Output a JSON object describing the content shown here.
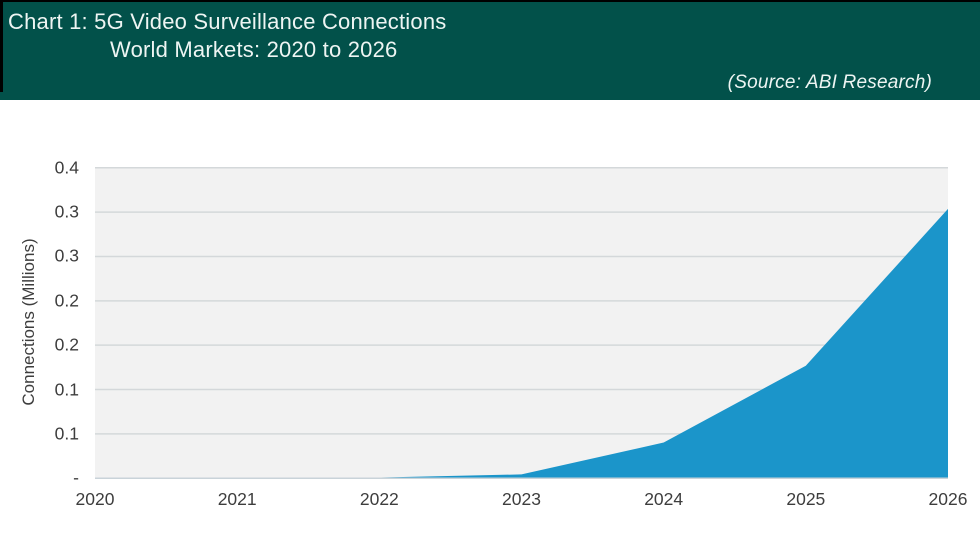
{
  "header": {
    "title_line1": "Chart 1: 5G Video Surveillance Connections",
    "title_line2": "World Markets: 2020 to 2026",
    "source": "(Source: ABI Research)"
  },
  "colors": {
    "header_bg": "#02514a",
    "header_text": "#eef5f3",
    "header_edge": "#000000",
    "area_fill": "#1b95ca",
    "plot_bg": "#f2f2f2",
    "gridline": "#d4d8da",
    "baseline": "#c9d3d9",
    "tick_text": "#3d3d3d"
  },
  "chart_data": {
    "type": "area",
    "title": "Chart 1: 5G Video Surveillance Connections — World Markets: 2020 to 2026",
    "x": [
      "2020",
      "2021",
      "2022",
      "2023",
      "2024",
      "2025",
      "2026"
    ],
    "series": [
      {
        "name": "5G Video Surveillance Connections",
        "values": [
          0,
          0,
          0.001,
          0.005,
          0.046,
          0.145,
          0.347
        ]
      }
    ],
    "xlabel": "",
    "ylabel": "Connections (Millions)",
    "ylim": [
      0,
      0.4
    ],
    "y_tick_labels_top_to_bottom": [
      "0.4",
      "0.3",
      "0.3",
      "0.2",
      "0.2",
      "0.1",
      "0.1",
      "-"
    ],
    "grid": true,
    "legend": false,
    "plot_background": "light gray",
    "source": "ABI Research"
  }
}
